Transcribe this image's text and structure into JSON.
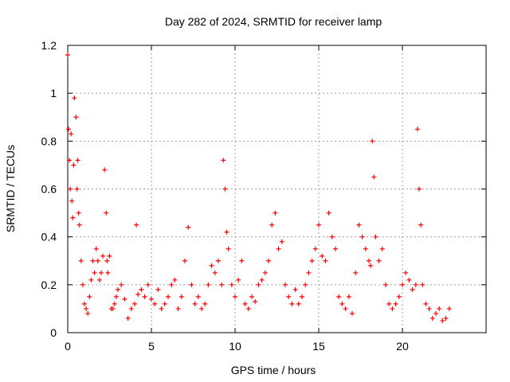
{
  "chart_data": {
    "type": "scatter",
    "title": "Day 282 of 2024, SRMTID for receiver lamp",
    "xlabel": "GPS time / hours",
    "ylabel": "SRMTID / TECUs",
    "xlim": [
      0,
      25
    ],
    "ylim": [
      0,
      1.2
    ],
    "x_ticks": [
      0,
      5,
      10,
      15,
      20
    ],
    "x_tick_labels": [
      "0",
      "5",
      "10",
      "15",
      "20"
    ],
    "y_ticks": [
      0,
      0.2,
      0.4,
      0.6,
      0.8,
      1,
      1.2
    ],
    "y_tick_labels": [
      "0",
      "0.2",
      "0.4",
      "0.6",
      "0.8",
      "1",
      "1.2"
    ],
    "grid": true,
    "marker": "+",
    "color": "#ff0000",
    "series": [
      {
        "name": "SRMTID",
        "x": [
          0.0,
          0.05,
          0.1,
          0.15,
          0.2,
          0.25,
          0.3,
          0.35,
          0.4,
          0.5,
          0.55,
          0.6,
          0.65,
          0.7,
          0.8,
          0.9,
          1.0,
          1.1,
          1.2,
          1.3,
          1.4,
          1.5,
          1.6,
          1.7,
          1.8,
          1.9,
          2.0,
          2.1,
          2.2,
          2.3,
          2.35,
          2.4,
          2.5,
          2.6,
          2.7,
          2.8,
          2.9,
          3.0,
          3.2,
          3.4,
          3.6,
          3.8,
          4.0,
          4.1,
          4.2,
          4.4,
          4.6,
          4.8,
          5.0,
          5.2,
          5.4,
          5.6,
          5.8,
          6.0,
          6.2,
          6.4,
          6.6,
          6.8,
          7.0,
          7.2,
          7.4,
          7.6,
          7.8,
          8.0,
          8.2,
          8.4,
          8.6,
          8.8,
          9.0,
          9.2,
          9.3,
          9.4,
          9.5,
          9.6,
          9.8,
          10.0,
          10.2,
          10.4,
          10.6,
          10.8,
          11.0,
          11.2,
          11.4,
          11.6,
          11.8,
          12.0,
          12.2,
          12.4,
          12.6,
          12.8,
          13.0,
          13.2,
          13.4,
          13.6,
          13.8,
          14.0,
          14.2,
          14.4,
          14.6,
          14.8,
          15.0,
          15.2,
          15.4,
          15.6,
          15.8,
          16.0,
          16.2,
          16.4,
          16.6,
          16.8,
          17.0,
          17.2,
          17.4,
          17.6,
          17.8,
          18.0,
          18.1,
          18.2,
          18.3,
          18.4,
          18.6,
          18.8,
          19.0,
          19.2,
          19.4,
          19.6,
          19.8,
          20.0,
          20.2,
          20.4,
          20.6,
          20.8,
          20.9,
          21.0,
          21.1,
          21.2,
          21.4,
          21.6,
          21.8,
          22.0,
          22.2,
          22.4,
          22.6,
          22.8
        ],
        "values": [
          1.16,
          0.85,
          0.72,
          0.6,
          0.83,
          0.55,
          0.48,
          0.7,
          0.98,
          0.9,
          0.6,
          0.72,
          0.5,
          0.45,
          0.3,
          0.2,
          0.12,
          0.1,
          0.08,
          0.15,
          0.22,
          0.3,
          0.25,
          0.35,
          0.3,
          0.22,
          0.25,
          0.32,
          0.68,
          0.5,
          0.3,
          0.25,
          0.32,
          0.1,
          0.1,
          0.12,
          0.15,
          0.18,
          0.2,
          0.14,
          0.06,
          0.1,
          0.12,
          0.45,
          0.16,
          0.18,
          0.15,
          0.2,
          0.14,
          0.12,
          0.18,
          0.1,
          0.12,
          0.15,
          0.2,
          0.22,
          0.1,
          0.15,
          0.3,
          0.44,
          0.2,
          0.12,
          0.15,
          0.1,
          0.12,
          0.2,
          0.28,
          0.25,
          0.3,
          0.2,
          0.72,
          0.6,
          0.42,
          0.35,
          0.2,
          0.15,
          0.22,
          0.3,
          0.12,
          0.1,
          0.15,
          0.13,
          0.2,
          0.22,
          0.25,
          0.3,
          0.45,
          0.5,
          0.35,
          0.38,
          0.2,
          0.15,
          0.12,
          0.18,
          0.12,
          0.15,
          0.2,
          0.25,
          0.3,
          0.35,
          0.45,
          0.32,
          0.3,
          0.5,
          0.4,
          0.35,
          0.15,
          0.12,
          0.1,
          0.15,
          0.08,
          0.25,
          0.45,
          0.4,
          0.35,
          0.3,
          0.28,
          0.8,
          0.65,
          0.4,
          0.3,
          0.35,
          0.2,
          0.12,
          0.1,
          0.12,
          0.15,
          0.2,
          0.25,
          0.22,
          0.18,
          0.2,
          0.85,
          0.6,
          0.45,
          0.2,
          0.12,
          0.1,
          0.06,
          0.08,
          0.1,
          0.05,
          0.06,
          0.1
        ]
      }
    ]
  }
}
